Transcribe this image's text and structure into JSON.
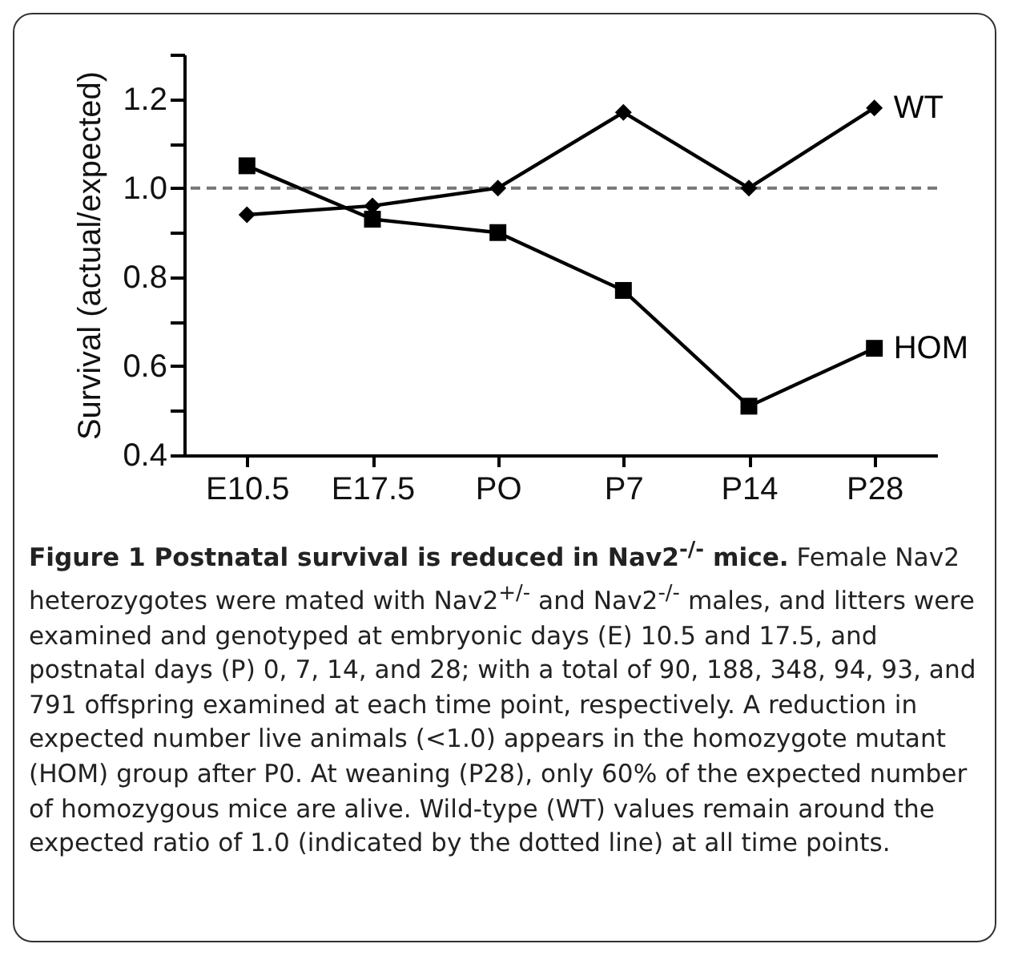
{
  "chart_data": {
    "type": "line",
    "title": "Figure 1 Postnatal survival is reduced in Nav2$^{-/-}$ mice.",
    "ylabel": "Survival (actual/expected)",
    "categories": [
      "E10.5",
      "E17.5",
      "PO",
      "P7",
      "P14",
      "P28"
    ],
    "series": [
      {
        "name": "WT",
        "color": "#000000",
        "marker": "diamond",
        "values": [
          0.94,
          0.96,
          1.0,
          1.17,
          1.0,
          1.18
        ]
      },
      {
        "name": "HOM",
        "color": "#000000",
        "marker": "square",
        "values": [
          1.05,
          0.93,
          0.9,
          0.77,
          0.51,
          0.64
        ]
      }
    ],
    "ylim": [
      0.4,
      1.3
    ],
    "yticks": [
      0.4,
      {
        "value": 0.5,
        "label": null
      },
      0.6,
      {
        "value": 0.7,
        "label": null
      },
      0.8,
      {
        "value": 0.9,
        "label": null
      },
      {
        "value": 1,
        "label": "1.0"
      },
      {
        "value": 1.1,
        "label": null
      },
      1.2,
      {
        "value": 1.3,
        "label": null
      }
    ],
    "ref_lines": [
      {
        "axis": "y",
        "value": 1,
        "color": "#777777",
        "line_style": "dashed"
      }
    ],
    "line_style": "solid",
    "grid": false,
    "annotations": [
      "Female Nav2 heterozygotes were mated with Nav2$^{+/-}$ and Nav2$^{-/-}$ males, and litters were examined and genotyped at embryonic days (E) 10.5 and 17.5, and postnatal days (P) 0, 7, 14, and 28; with a total of 90, 188, 348, 94, 93, and 791 offspring examined at each time point, respectively. A reduction in expected number live animals (<1.0) appears in the homozygote mutant (HOM) group after P0. At weaning (P28), only 60% of the expected number of homozygous mice are alive. Wild-type (WT) values remain around the expected ratio of 1.0 (indicated by the dotted line) at all time points."
    ]
  }
}
